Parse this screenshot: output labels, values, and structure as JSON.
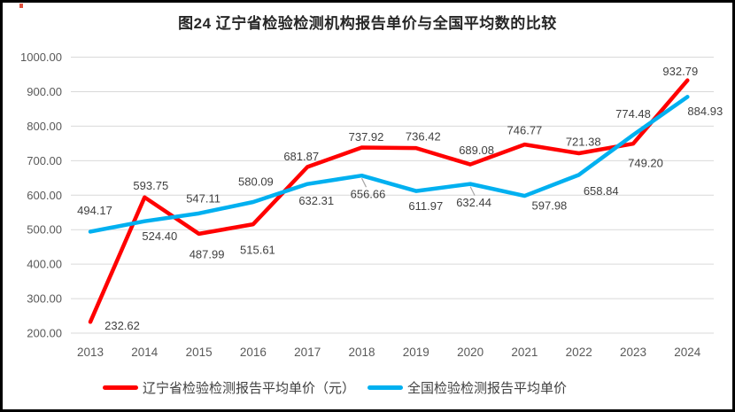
{
  "frame": {
    "background": "#ffffff",
    "border_color": "#000000"
  },
  "chart_data": {
    "type": "line",
    "title": "图24 辽宁省检验检测机构报告单价与全国平均数的比较",
    "categories": [
      "2013",
      "2014",
      "2015",
      "2016",
      "2017",
      "2018",
      "2019",
      "2020",
      "2021",
      "2022",
      "2023",
      "2024"
    ],
    "series": [
      {
        "name": "辽宁省检验检测报告平均单价（元）",
        "color": "#FF0000",
        "values": [
          232.62,
          593.75,
          487.99,
          515.61,
          681.87,
          737.92,
          736.42,
          689.08,
          746.77,
          721.38,
          749.2,
          932.79
        ]
      },
      {
        "name": "全国检验检测报告平均单价",
        "color": "#00B0F0",
        "values": [
          494.17,
          524.4,
          547.11,
          580.09,
          632.31,
          656.66,
          611.97,
          632.44,
          597.98,
          658.84,
          774.48,
          884.93
        ]
      }
    ],
    "xlabel": "",
    "ylabel": "",
    "ylim": [
      200,
      1000
    ],
    "yticks": [
      200,
      300,
      400,
      500,
      600,
      700,
      800,
      900,
      1000
    ],
    "ytick_decimals": 2,
    "grid": true,
    "legend_position": "bottom",
    "colors": {
      "grid": "#D9D9D9",
      "axis_text": "#595959",
      "data_label_text": "#404040",
      "leader_line": "#A6A6A6"
    },
    "label_offsets": [
      [
        [
          36,
          4
        ],
        [
          7,
          -13
        ],
        [
          9,
          23
        ],
        [
          5,
          29
        ],
        [
          -7,
          -12
        ],
        [
          5,
          -12
        ],
        [
          8,
          -13
        ],
        [
          7,
          -16
        ],
        [
          0,
          -16
        ],
        [
          5,
          -13
        ],
        [
          14,
          22
        ],
        [
          -8,
          -10
        ]
      ],
      [
        [
          5,
          -24
        ],
        [
          17,
          17
        ],
        [
          5,
          -17
        ],
        [
          3,
          -23
        ],
        [
          10,
          19
        ],
        [
          7,
          21
        ],
        [
          11,
          17
        ],
        [
          4,
          21
        ],
        [
          28,
          11
        ],
        [
          25,
          18
        ],
        [
          0,
          -24
        ],
        [
          20,
          16
        ]
      ]
    ],
    "leader_lines": [
      {
        "series": 1,
        "index": 5
      },
      {
        "series": 1,
        "index": 7
      }
    ]
  }
}
